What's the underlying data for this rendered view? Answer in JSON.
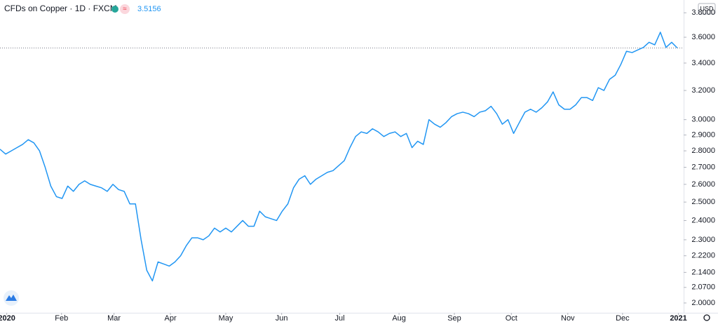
{
  "chart_data": {
    "type": "line",
    "title": "CFDs on Copper · 1D · FXCM",
    "last_value": {
      "value": 3.5156,
      "label": "3.5156"
    },
    "currency": "USD",
    "log_scale": true,
    "grid": false,
    "series": [
      {
        "name": "CFDs on Copper",
        "color": "#2196f3",
        "values": [
          2.81,
          2.78,
          2.8,
          2.82,
          2.84,
          2.87,
          2.85,
          2.8,
          2.7,
          2.59,
          2.53,
          2.52,
          2.59,
          2.56,
          2.6,
          2.62,
          2.6,
          2.59,
          2.58,
          2.56,
          2.6,
          2.57,
          2.56,
          2.49,
          2.49,
          2.3,
          2.15,
          2.1,
          2.19,
          2.18,
          2.17,
          2.19,
          2.22,
          2.27,
          2.31,
          2.31,
          2.3,
          2.32,
          2.36,
          2.34,
          2.36,
          2.34,
          2.37,
          2.4,
          2.37,
          2.37,
          2.45,
          2.42,
          2.41,
          2.4,
          2.45,
          2.49,
          2.58,
          2.63,
          2.65,
          2.6,
          2.63,
          2.65,
          2.67,
          2.68,
          2.71,
          2.74,
          2.82,
          2.89,
          2.92,
          2.91,
          2.94,
          2.92,
          2.89,
          2.91,
          2.92,
          2.89,
          2.91,
          2.82,
          2.86,
          2.84,
          3.0,
          2.97,
          2.95,
          2.98,
          3.02,
          3.04,
          3.05,
          3.04,
          3.02,
          3.05,
          3.06,
          3.09,
          3.04,
          2.97,
          3.0,
          2.91,
          2.98,
          3.05,
          3.07,
          3.05,
          3.08,
          3.12,
          3.19,
          3.1,
          3.07,
          3.07,
          3.1,
          3.15,
          3.15,
          3.13,
          3.22,
          3.2,
          3.28,
          3.31,
          3.39,
          3.49,
          3.48,
          3.5,
          3.52,
          3.56,
          3.54,
          3.64,
          3.52,
          3.56,
          3.5156
        ]
      }
    ],
    "xlim": [
      0,
      121
    ],
    "xticks": [
      {
        "value": 1.2,
        "label": "2020"
      },
      {
        "value": 10.9,
        "label": "Feb"
      },
      {
        "value": 20.2,
        "label": "Mar"
      },
      {
        "value": 30.2,
        "label": "Apr"
      },
      {
        "value": 40,
        "label": "May"
      },
      {
        "value": 49.9,
        "label": "Jun"
      },
      {
        "value": 60.2,
        "label": "Jul"
      },
      {
        "value": 70.7,
        "label": "Aug"
      },
      {
        "value": 80.5,
        "label": "Sep"
      },
      {
        "value": 90.6,
        "label": "Oct"
      },
      {
        "value": 100.6,
        "label": "Nov"
      },
      {
        "value": 110.3,
        "label": "Dec"
      },
      {
        "value": 120.2,
        "label": "2021"
      }
    ],
    "ylim": [
      1.957,
      3.909
    ],
    "yticks": [
      {
        "value": 2,
        "label": "2.0000"
      },
      {
        "value": 2.07,
        "label": "2.0700"
      },
      {
        "value": 2.14,
        "label": "2.1400"
      },
      {
        "value": 2.22,
        "label": "2.2200"
      },
      {
        "value": 2.3,
        "label": "2.3000"
      },
      {
        "value": 2.4,
        "label": "2.4000"
      },
      {
        "value": 2.5,
        "label": "2.5000"
      },
      {
        "value": 2.6,
        "label": "2.6000"
      },
      {
        "value": 2.7,
        "label": "2.7000"
      },
      {
        "value": 2.8,
        "label": "2.8000"
      },
      {
        "value": 2.9,
        "label": "2.9000"
      },
      {
        "value": 3,
        "label": "3.0000"
      },
      {
        "value": 3.2,
        "label": "3.2000"
      },
      {
        "value": 3.4,
        "label": "3.4000"
      },
      {
        "value": 3.6,
        "label": "3.6000"
      },
      {
        "value": 3.8,
        "label": "3.8000"
      }
    ]
  }
}
